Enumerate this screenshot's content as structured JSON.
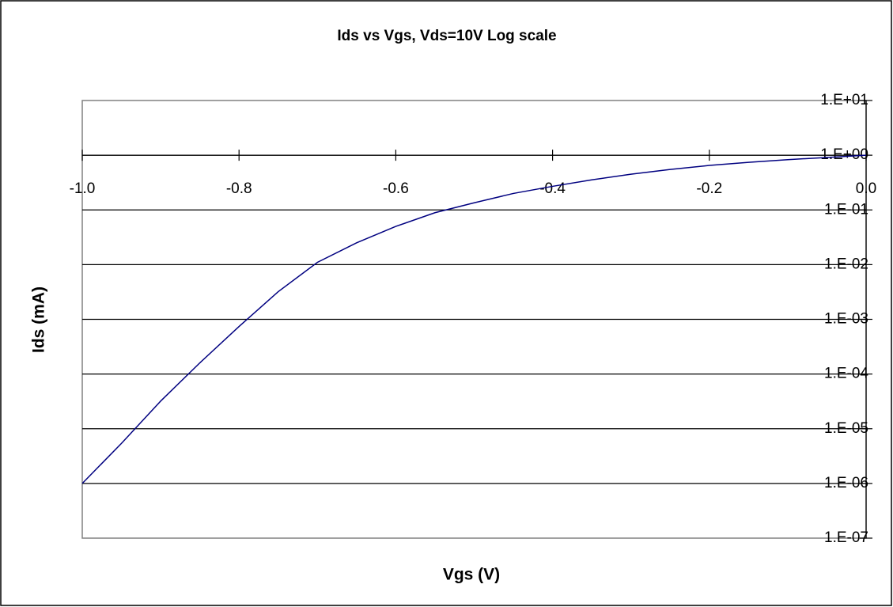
{
  "chart_data": {
    "type": "line",
    "title": "Ids vs Vgs,  Vds=10V  Log scale",
    "x_label": "Vgs (V)",
    "y_label": "Ids (mA)",
    "x": [
      -1.0,
      -0.95,
      -0.9,
      -0.85,
      -0.8,
      -0.75,
      -0.7,
      -0.65,
      -0.6,
      -0.55,
      -0.5,
      -0.45,
      -0.4,
      -0.35,
      -0.3,
      -0.25,
      -0.2,
      -0.15,
      -0.1,
      -0.05,
      0.0
    ],
    "series": [
      {
        "name": "Ids",
        "color": "#000080",
        "values": [
          1e-06,
          5.4e-06,
          3.2e-05,
          0.00016,
          0.00074,
          0.0032,
          0.011,
          0.025,
          0.05,
          0.089,
          0.135,
          0.2,
          0.27,
          0.355,
          0.45,
          0.55,
          0.65,
          0.74,
          0.83,
          0.91,
          1.0
        ]
      }
    ],
    "xlim": [
      -1.0,
      0.0
    ],
    "xticks": [
      {
        "value": -1.0,
        "label": "-1.0"
      },
      {
        "value": -0.8,
        "label": "-0.8"
      },
      {
        "value": -0.6,
        "label": "-0.6"
      },
      {
        "value": -0.4,
        "label": "-0.4"
      },
      {
        "value": -0.2,
        "label": "-0.2"
      },
      {
        "value": 0.0,
        "label": "0.0"
      }
    ],
    "ylim": [
      1e-07,
      10
    ],
    "yticks": [
      {
        "value": 10,
        "label": "1.E+01"
      },
      {
        "value": 1,
        "label": "1.E+00"
      },
      {
        "value": 0.1,
        "label": "1.E-01"
      },
      {
        "value": 0.01,
        "label": "1.E-02"
      },
      {
        "value": 0.001,
        "label": "1.E-03"
      },
      {
        "value": 0.0001,
        "label": "1.E-04"
      },
      {
        "value": 1e-05,
        "label": "1.E-05"
      },
      {
        "value": 1e-06,
        "label": "1.E-06"
      },
      {
        "value": 1e-07,
        "label": "1.E-07"
      }
    ],
    "y_log": true,
    "grid": true
  }
}
